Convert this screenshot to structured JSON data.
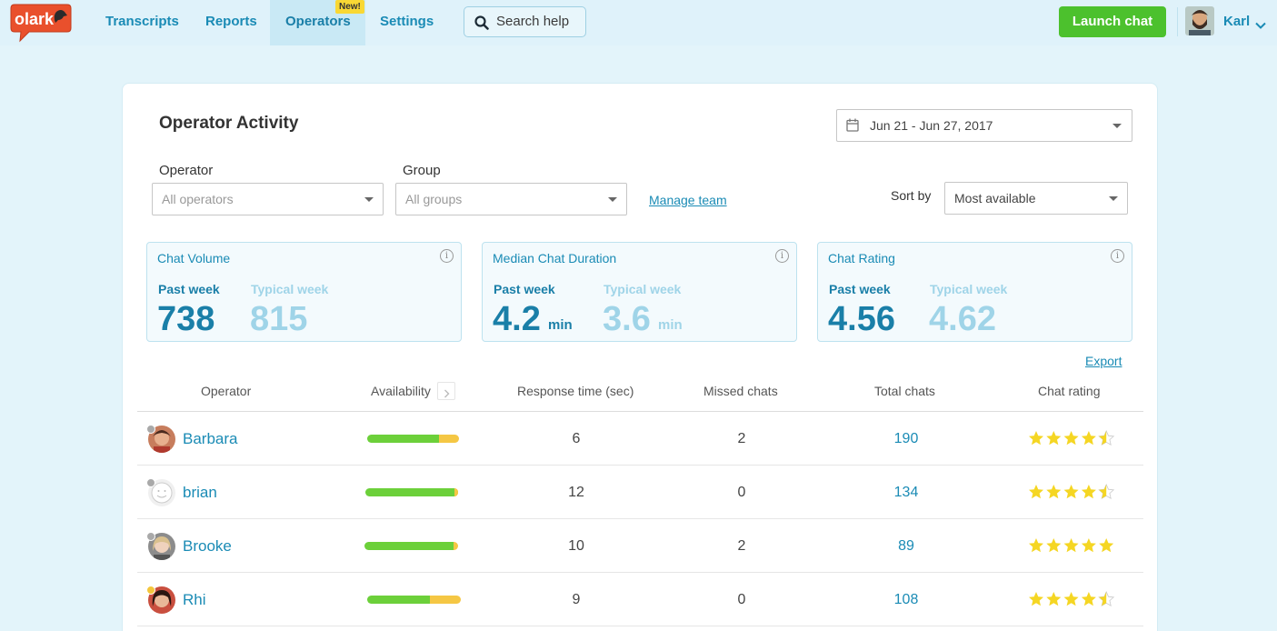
{
  "header": {
    "logo_text": "olark",
    "nav": [
      {
        "label": "Transcripts",
        "active": false
      },
      {
        "label": "Reports",
        "active": false
      },
      {
        "label": "Operators",
        "active": true,
        "badge": "New!"
      },
      {
        "label": "Settings",
        "active": false
      }
    ],
    "search_placeholder": "Search help",
    "launch_label": "Launch chat",
    "user_name": "Karl"
  },
  "page": {
    "title": "Operator Activity",
    "date_range": "Jun 21 - Jun 27, 2017",
    "filters": {
      "operator_label": "Operator",
      "operator_value": "All operators",
      "group_label": "Group",
      "group_value": "All groups",
      "manage_team": "Manage team",
      "sort_label": "Sort by",
      "sort_value": "Most available"
    },
    "stats": [
      {
        "title": "Chat Volume",
        "past_label": "Past week",
        "past_value": "738",
        "typical_label": "Typical week",
        "typical_value": "815",
        "unit": ""
      },
      {
        "title": "Median Chat Duration",
        "past_label": "Past week",
        "past_value": "4.2",
        "typical_label": "Typical week",
        "typical_value": "3.6",
        "unit": "min"
      },
      {
        "title": "Chat Rating",
        "past_label": "Past week",
        "past_value": "4.56",
        "typical_label": "Typical week",
        "typical_value": "4.62",
        "unit": ""
      }
    ],
    "info_glyph": "i",
    "export": "Export",
    "columns": [
      "Operator",
      "Availability",
      "Response time (sec)",
      "Missed chats",
      "Total chats",
      "Chat rating"
    ],
    "rows": [
      {
        "name": "Barbara",
        "status": "away",
        "availability": {
          "available": 0.77,
          "away": 0.21
        },
        "response": "6",
        "missed": "2",
        "total": "190",
        "rating": 4.5
      },
      {
        "name": "brian",
        "status": "away",
        "availability": {
          "available": 0.95,
          "away": 0.04
        },
        "response": "12",
        "missed": "0",
        "total": "134",
        "rating": 4.5
      },
      {
        "name": "Brooke",
        "status": "away",
        "availability": {
          "available": 0.95,
          "away": 0.05
        },
        "response": "10",
        "missed": "2",
        "total": "89",
        "rating": 5
      },
      {
        "name": "Rhi",
        "status": "busy",
        "availability": {
          "available": 0.67,
          "away": 0.33
        },
        "response": "9",
        "missed": "0",
        "total": "108",
        "rating": 4.5
      }
    ]
  },
  "colors": {
    "brand": "#1a8bb5",
    "launch": "#4cc12d",
    "available_bar": "#6cd03a",
    "away_bar": "#f5c744",
    "star": "#f5d623",
    "status_away": "#a9a9a9",
    "status_busy": "#f4c63c"
  }
}
